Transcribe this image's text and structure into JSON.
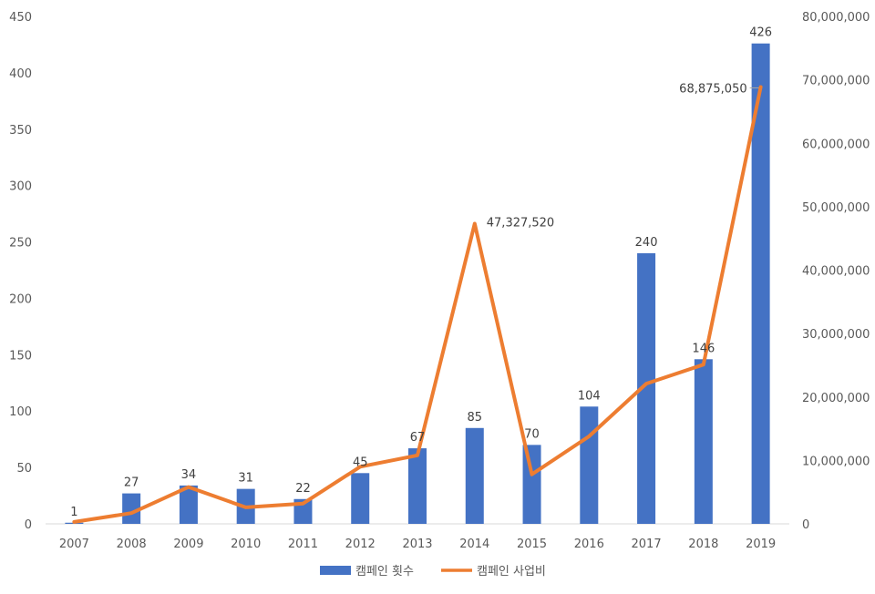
{
  "chart_data": {
    "type": "bar+line",
    "categories": [
      "2007",
      "2008",
      "2009",
      "2010",
      "2011",
      "2012",
      "2013",
      "2014",
      "2015",
      "2016",
      "2017",
      "2018",
      "2019"
    ],
    "series": [
      {
        "name": "캠페인 횟수",
        "type": "bar",
        "axis": "left",
        "color": "#4472C4",
        "values": [
          1,
          27,
          34,
          31,
          22,
          45,
          67,
          85,
          70,
          104,
          240,
          146,
          426
        ],
        "data_labels": [
          "1",
          "27",
          "34",
          "31",
          "22",
          "45",
          "67",
          "85",
          "70",
          "104",
          "240",
          "146",
          "426"
        ]
      },
      {
        "name": "캠페인 사업비",
        "type": "line",
        "axis": "right",
        "color": "#ED7D31",
        "values": [
          300000,
          1700000,
          5800000,
          2600000,
          3200000,
          9000000,
          10800000,
          47327520,
          7800000,
          13800000,
          22100000,
          25100000,
          68875050
        ],
        "data_labels": [
          "",
          "",
          "",
          "",
          "",
          "",
          "",
          "47,327,520",
          "",
          "",
          "",
          "",
          "68,875,050"
        ]
      }
    ],
    "y_left": {
      "min": 0,
      "max": 450,
      "step": 50,
      "tick_labels": [
        "0",
        "50",
        "100",
        "150",
        "200",
        "250",
        "300",
        "350",
        "400",
        "450"
      ]
    },
    "y_right": {
      "min": 0,
      "max": 80000000,
      "step": 10000000,
      "tick_labels": [
        "0",
        "10,000,000",
        "20,000,000",
        "30,000,000",
        "40,000,000",
        "50,000,000",
        "60,000,000",
        "70,000,000",
        "80,000,000"
      ]
    },
    "title": "",
    "xlabel": "",
    "ylabel": "",
    "grid": false,
    "legend_position": "bottom"
  }
}
